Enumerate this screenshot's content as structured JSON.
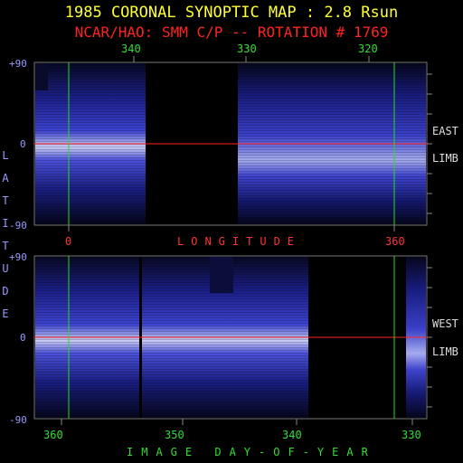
{
  "header": {
    "title": "1985 CORONAL SYNOPTIC MAP : 2.8 Rsun",
    "subtitle": "NCAR/HAO: SMM C/P -- ROTATION # 1769"
  },
  "top_panel": {
    "top_ticks": [
      "340",
      "330",
      "320"
    ],
    "bottom_ticks": [
      "0",
      "360"
    ],
    "axis_label": "LONGITUDE",
    "lat_labels": [
      "+90",
      "0",
      "-90"
    ],
    "side_label_1": "EAST",
    "side_label_2": "LIMB"
  },
  "bottom_panel": {
    "bottom_ticks": [
      "360",
      "350",
      "340",
      "330"
    ],
    "axis_label": "IMAGE DAY-OF-YEAR",
    "lat_labels": [
      "+90",
      "0",
      "-90"
    ],
    "side_label_1": "WEST",
    "side_label_2": "LIMB"
  },
  "y_axis_label": "LATITUDE",
  "colors": {
    "title": "#ffff33",
    "subtitle": "#ff2222",
    "equator": "#ff2222",
    "marker": "#22dd22",
    "band": "#3a3fc8"
  }
}
